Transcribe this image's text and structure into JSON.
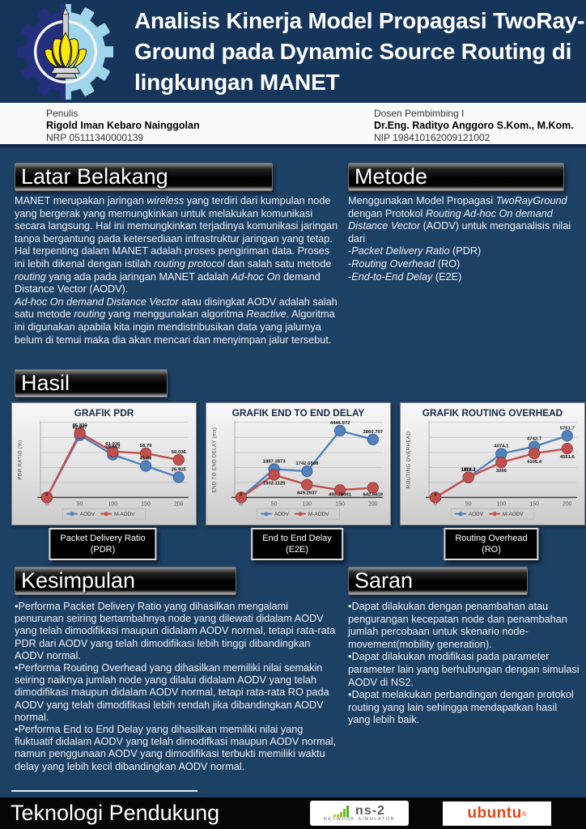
{
  "header": {
    "title": "Analisis Kinerja Model Propagasi TwoRay-Ground pada Dynamic Source Routing di lingkungan MANET"
  },
  "authors": {
    "left": {
      "label": "Penulis",
      "name": "Rigold Iman Kebaro Nainggolan",
      "id": "NRP 05111340000139"
    },
    "right": {
      "label": "Dosen Pembimbing I",
      "name": "Dr.Eng. Radityo Anggoro S.Kom., M.Kom.",
      "id": "NIP 198410162009121002"
    }
  },
  "sections": {
    "latar_belakang": {
      "heading": "Latar Belakang",
      "paragraphs": [
        [
          {
            "t": "MANET merupakan jaringan "
          },
          {
            "t": "wireless",
            "i": true
          },
          {
            "t": " yang terdiri dari kumpulan node yang bergerak yang memungkinkan untuk melakukan komunikasi secara langsung. Hal ini memungkinkan terjadinya komunikasi jaringan tanpa bergantung pada ketersediaan infrastruktur jaringan yang tetap.  Hal terpenting dalam MANET adalah proses pengiriman data. Proses ini lebih dikenal dengan istilah "
          },
          {
            "t": "routing protocol",
            "i": true
          },
          {
            "t": " dan salah satu metode "
          },
          {
            "t": "routing",
            "i": true
          },
          {
            "t": " yang ada pada jaringan MANET adalah "
          },
          {
            "t": "Ad-hoc On",
            "i": true
          },
          {
            "t": " demand Distance Vector (AODV)."
          }
        ],
        [
          {
            "t": "Ad-hoc On demand Distance Vector",
            "i": true
          },
          {
            "t": " atau disingkat AODV adalah salah satu metode "
          },
          {
            "t": "routing",
            "i": true
          },
          {
            "t": " yang menggunakan algoritma "
          },
          {
            "t": "Reactive",
            "i": true
          },
          {
            "t": ". Algoritma ini digunakan apabila kita ingin mendistribusikan data yang jalurnya belum di temui maka dia akan mencari dan menyimpan jalur tersebut."
          }
        ]
      ]
    },
    "metode": {
      "heading": "Metode",
      "paragraphs": [
        [
          {
            "t": "Menggunakan Model Propagasi "
          },
          {
            "t": "TwoRayGround",
            "i": true
          },
          {
            "t": " dengan Protokol "
          },
          {
            "t": "Routing Ad-hoc On demand Distance Vector",
            "i": true
          },
          {
            "t": " (AODV) untuk menganalisis nilai dari"
          }
        ],
        [
          {
            "t": "-"
          },
          {
            "t": "Packet Delivery Ratio",
            "i": true
          },
          {
            "t": " (PDR)"
          }
        ],
        [
          {
            "t": "-"
          },
          {
            "t": "Routing Overhead",
            "i": true
          },
          {
            "t": " (RO)"
          }
        ],
        [
          {
            "t": "-"
          },
          {
            "t": "End-to-End Delay",
            "i": true
          },
          {
            "t": " (E2E)"
          }
        ]
      ]
    },
    "hasil": {
      "heading": "Hasil",
      "captions": [
        {
          "line1": "Packet Delivery Ratio",
          "line2": "(PDR)"
        },
        {
          "line1": "End to End Delay",
          "line2": "(E2E)"
        },
        {
          "line1": "Routing Overhead",
          "line2": "(RO)"
        }
      ]
    },
    "kesimpulan": {
      "heading": "Kesimpulan",
      "bullets": [
        "Performa Packet Delivery Ratio yang dihasilkan mengalami penurunan seiring bertambahnya node yang dilewati didalam AODV yang telah dimodifikasi maupun didalam AODV normal, tetapi rata-rata PDR dari AODV yang telah dimodifikasi lebih tinggi dibandingkan AODV normal.",
        "Performa Routing Overhead yang dihasilkan memiliki nilai semakin seiring naiknya jumlah node yang dilalui didalam AODV yang telah dimodifikasi maupun didalam AODV normal, tetapi rata-rata RO pada AODV yang telah dimodifikasi lebih rendah jika dibandingkan AODV normal.",
        "Performa End to End Delay yang dihasilkan memiliki nilai yang fluktuatif didalam AODV yang telah dimodifkasi maupun AODV normal, namun penggunaan AODV yang dimodifikasi terbukti memiliki waktu delay yang lebih kecil dibandingkan AODV normal."
      ]
    },
    "saran": {
      "heading": "Saran",
      "bullets": [
        "Dapat dilakukan dengan penambahan atau pengurangan kecepatan node dan penambahan jumlah percobaan untuk skenario node-movement(mobility generation).",
        "Dapat dilakukan modifikasi pada parameter parameter lain yang berhubungan dengan simulasi AODV di NS2.",
        "Dapat melakukan perbandingan dengan protokol routing yang lain sehingga mendapatkan hasil yang lebih baik."
      ]
    }
  },
  "footer": {
    "title": "Teknologi Pendukung",
    "ns2": {
      "name": "ns-2",
      "sub": "NETWORK SIMULATOR"
    },
    "ubuntu": {
      "name": "ubuntu",
      "reg": "®"
    }
  },
  "colors": {
    "header_navy": "#15355a",
    "body_navy": "#1d4065",
    "bar_black": "#000000",
    "series_aodv_blue": "#4F81BD",
    "series_maodv_red": "#C0504D",
    "ubuntu_orange": "#dd4814",
    "ns2_green": "#76b821"
  },
  "chart_data": [
    {
      "type": "line",
      "title": "GRAFIK PDR",
      "ylabel": "PDR RATIO (%)",
      "x": [
        0,
        50,
        100,
        150,
        200
      ],
      "ylim": [
        0,
        100
      ],
      "grid_divisions": 5,
      "legend_position": "bottom",
      "series": [
        {
          "name": "AODV",
          "color": "#4F81BD",
          "edge": "#385D8A",
          "values": [
            0,
            82.897,
            56.952,
            41.86,
            26.925
          ],
          "labels": [
            "",
            "82.897",
            "56.952",
            "41.86",
            "26.925"
          ]
        },
        {
          "name": "M-AODV",
          "color": "#C0504D",
          "edge": "#8C3836",
          "values": [
            0,
            85.839,
            61.036,
            58.79,
            50.036
          ],
          "labels": [
            "0",
            "85.839",
            "61.036",
            "58.79",
            "50.036"
          ]
        }
      ]
    },
    {
      "type": "line",
      "title": "GRAFIK END TO END DELAY",
      "ylabel": "END TO END DELAY (ms)",
      "x": [
        0,
        50,
        100,
        150,
        200
      ],
      "ylim": [
        0,
        5000
      ],
      "grid_divisions": 5,
      "legend_position": "bottom",
      "series": [
        {
          "name": "AODV",
          "color": "#4F81BD",
          "edge": "#385D8A",
          "values": [
            0,
            1887.3873,
            1742.6508,
            4446.972,
            3860.707
          ],
          "labels": [
            "",
            "1887.3873",
            "1742.6508",
            "4446.972",
            "3860.707"
          ]
        },
        {
          "name": "M-AODV",
          "color": "#C0504D",
          "edge": "#8C3836",
          "values": [
            0,
            1502.1125,
            849.2937,
            492.78091,
            642.6819
          ],
          "labels": [
            "0",
            "1502.1125",
            "849.2937",
            "492.78091",
            "642.6819"
          ]
        }
      ]
    },
    {
      "type": "line",
      "title": "GRAFIK ROUTING OVERHEAD",
      "ylabel": "ROUTING OVERHEAD",
      "x": [
        0,
        50,
        100,
        150,
        200
      ],
      "ylim": [
        0,
        7000
      ],
      "grid_divisions": 5,
      "legend_position": "bottom",
      "series": [
        {
          "name": "AODV",
          "color": "#4F81BD",
          "edge": "#385D8A",
          "values": [
            0,
            1859.1,
            4074.1,
            4742.7,
            5751.7
          ],
          "labels": [
            "",
            "1859.1",
            "4074.1",
            "4742.7",
            "5751.7"
          ]
        },
        {
          "name": "M-AODV",
          "color": "#C0504D",
          "edge": "#8C3836",
          "values": [
            0,
            1872.2,
            3266,
            4105.4,
            4551.6
          ],
          "labels": [
            "0",
            "1872.2",
            "3266",
            "4105.4",
            "4551.6"
          ]
        }
      ]
    }
  ]
}
